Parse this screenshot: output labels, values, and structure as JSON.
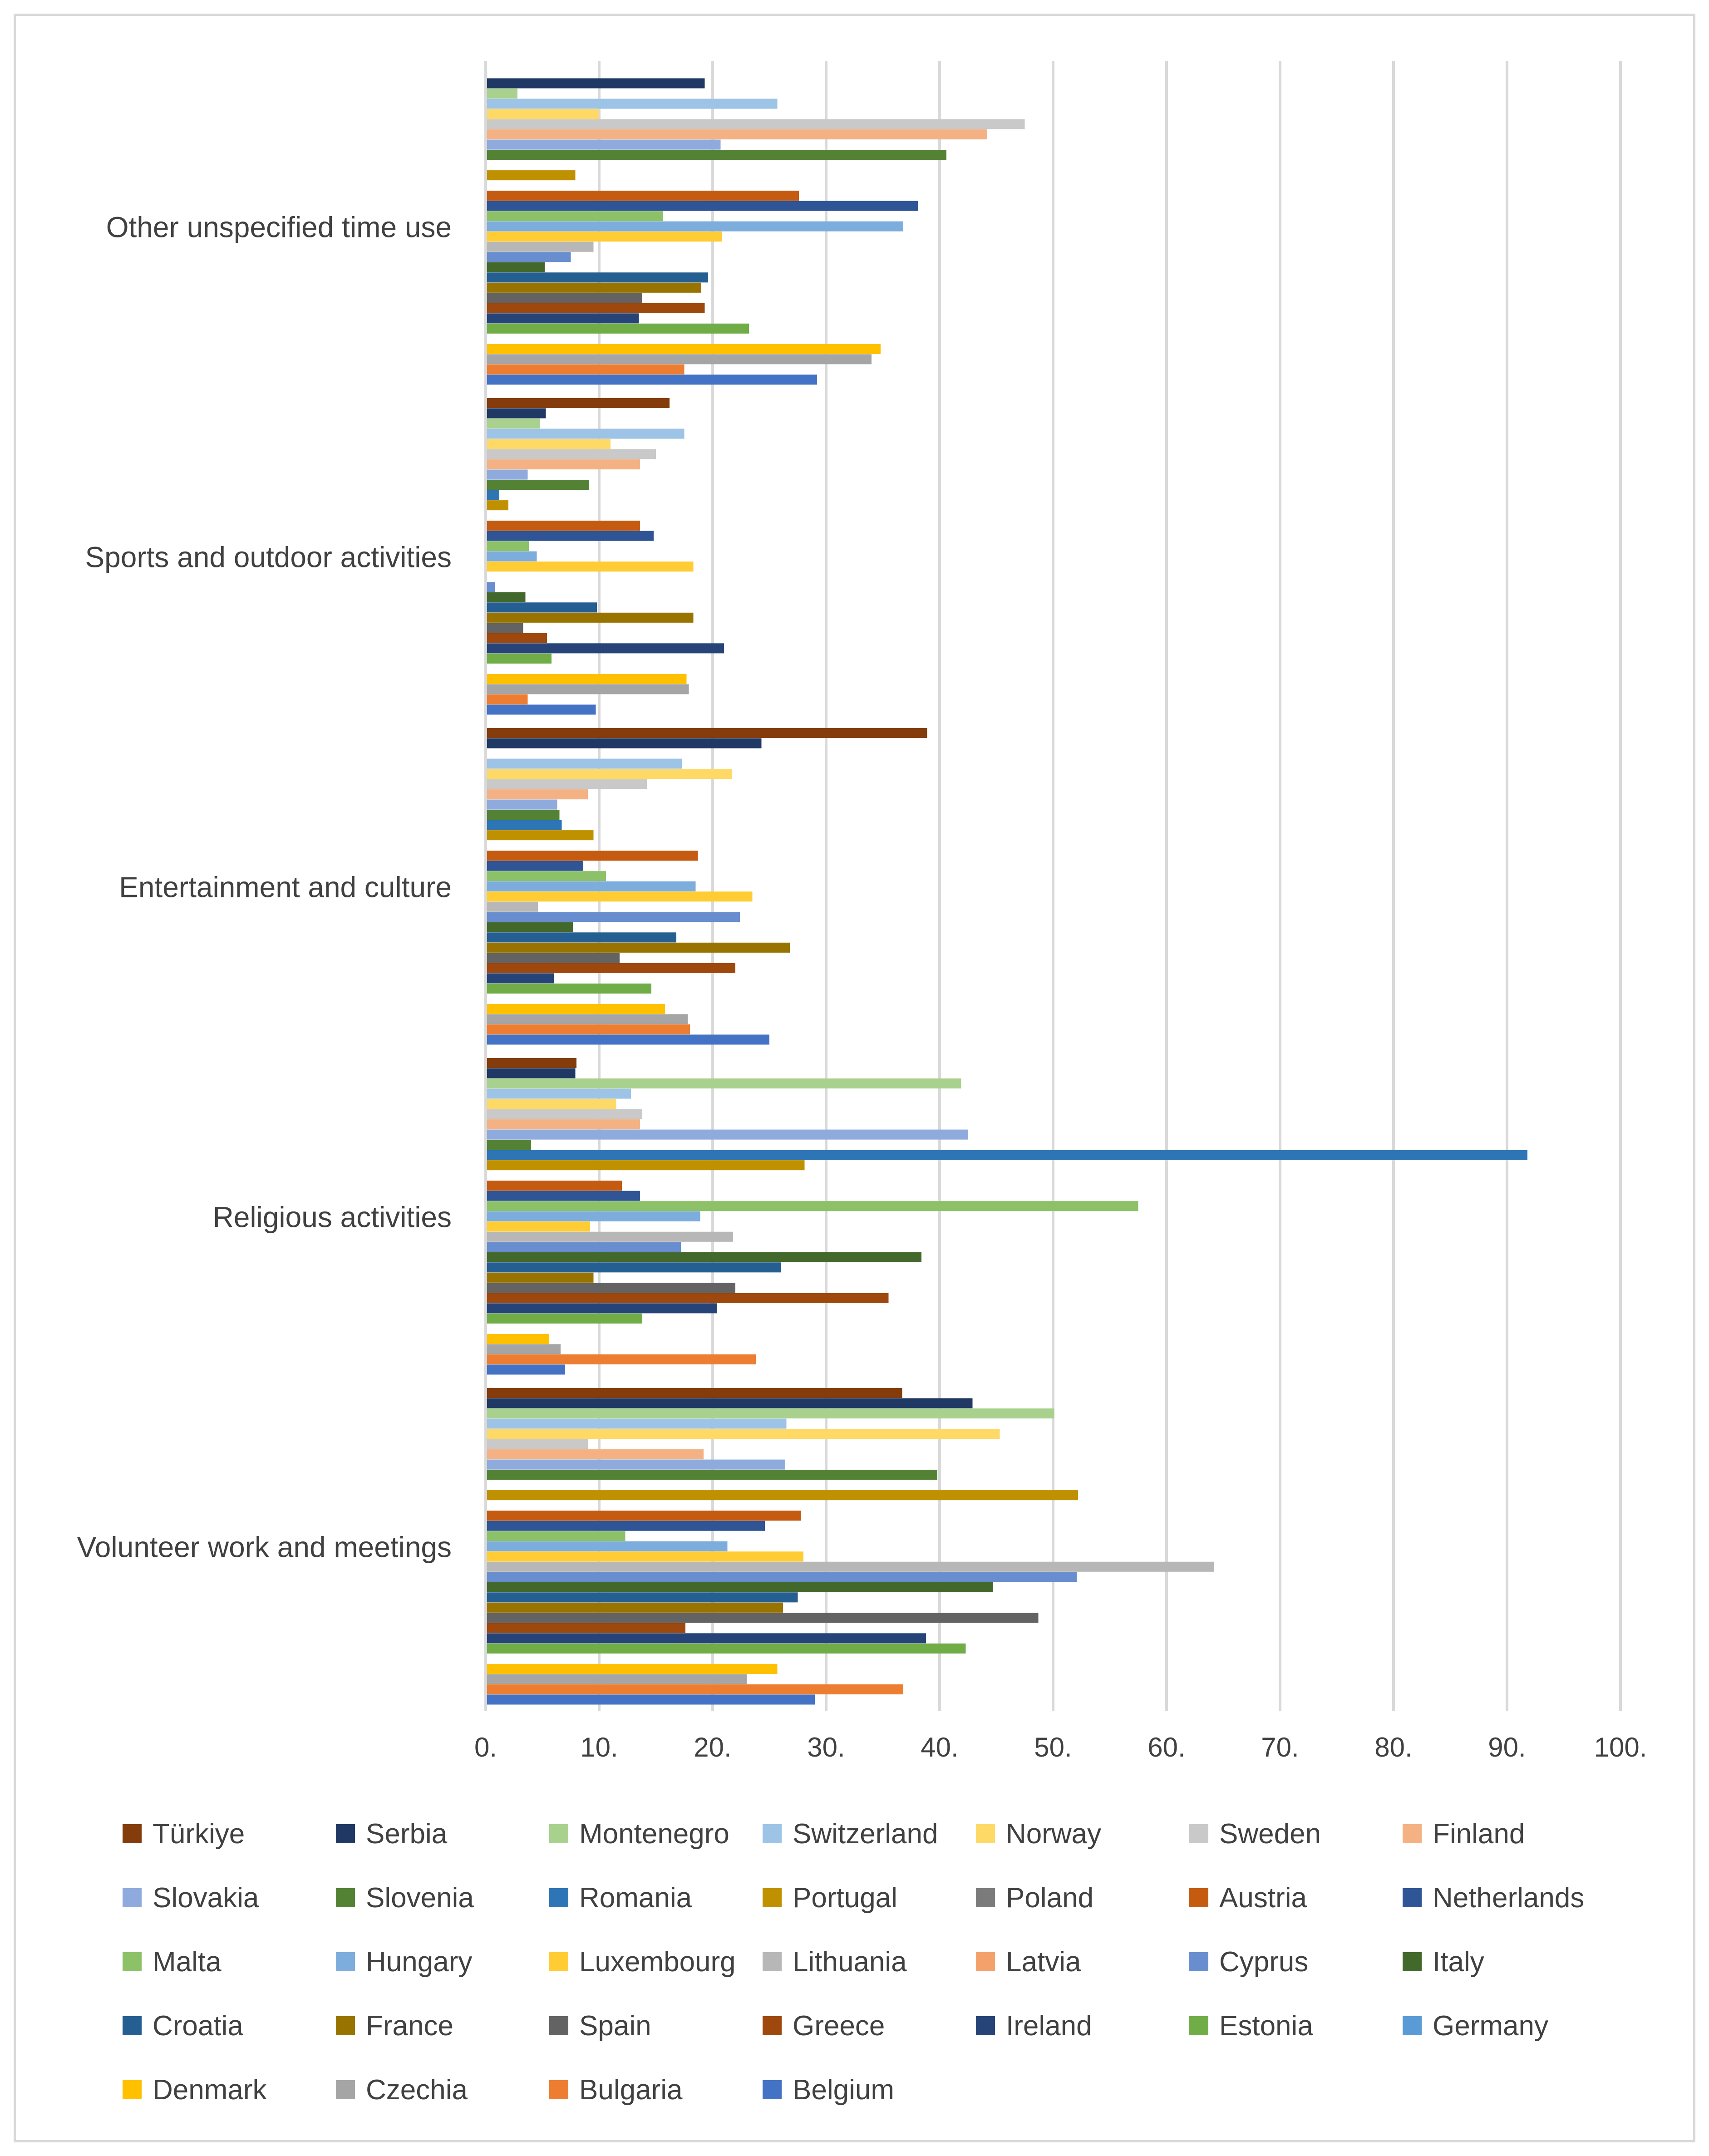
{
  "chart_data": {
    "type": "bar",
    "orientation": "horizontal",
    "grid": true,
    "legend_position": "bottom",
    "xlim": [
      0,
      100
    ],
    "xticks": [
      "0.",
      "10.",
      "20.",
      "30.",
      "40.",
      "50.",
      "60.",
      "70.",
      "80.",
      "90.",
      "100."
    ],
    "categories": [
      "Volunteer work and meetings",
      "Religious activities",
      "Entertainment and culture",
      "Sports and outdoor activities",
      "Other unspecified time use"
    ],
    "series": [
      {
        "name": "Belgium",
        "color": "#4472c4",
        "values": [
          29.0,
          7.0,
          25.0,
          9.7,
          29.2
        ]
      },
      {
        "name": "Bulgaria",
        "color": "#ed7d31",
        "values": [
          36.8,
          23.8,
          18.0,
          3.7,
          17.5
        ]
      },
      {
        "name": "Czechia",
        "color": "#a5a5a5",
        "values": [
          23.0,
          6.6,
          17.8,
          17.9,
          34.0
        ]
      },
      {
        "name": "Denmark",
        "color": "#ffc000",
        "values": [
          25.7,
          5.6,
          15.8,
          17.7,
          34.8
        ]
      },
      {
        "name": "Germany",
        "color": "#5b9bd5",
        "values": [
          null,
          null,
          null,
          null,
          null
        ]
      },
      {
        "name": "Estonia",
        "color": "#70ad47",
        "values": [
          42.3,
          13.8,
          14.6,
          5.8,
          23.2
        ]
      },
      {
        "name": "Ireland",
        "color": "#264478",
        "values": [
          38.8,
          20.4,
          6.0,
          21.0,
          13.5
        ]
      },
      {
        "name": "Greece",
        "color": "#9e480e",
        "values": [
          17.6,
          35.5,
          22.0,
          5.4,
          19.3
        ]
      },
      {
        "name": "Spain",
        "color": "#636363",
        "values": [
          48.7,
          22.0,
          11.8,
          3.3,
          13.8
        ]
      },
      {
        "name": "France",
        "color": "#997300",
        "values": [
          26.2,
          9.5,
          26.8,
          18.3,
          19.0
        ]
      },
      {
        "name": "Croatia",
        "color": "#255e91",
        "values": [
          27.5,
          26.0,
          16.8,
          9.8,
          19.6
        ]
      },
      {
        "name": "Italy",
        "color": "#43682b",
        "values": [
          44.7,
          38.4,
          7.7,
          3.5,
          5.2
        ]
      },
      {
        "name": "Cyprus",
        "color": "#698ed0",
        "values": [
          52.1,
          17.2,
          22.4,
          0.8,
          7.5
        ]
      },
      {
        "name": "Lithuania",
        "color": "#b7b7b7",
        "values": [
          64.2,
          21.8,
          4.6,
          null,
          9.5
        ]
      },
      {
        "name": "Luxembourg",
        "color": "#ffcd33",
        "values": [
          28.0,
          9.2,
          23.5,
          18.3,
          20.8
        ]
      },
      {
        "name": "Hungary",
        "color": "#7caddd",
        "values": [
          21.3,
          18.9,
          18.5,
          4.5,
          36.8
        ]
      },
      {
        "name": "Malta",
        "color": "#8cc168",
        "values": [
          12.3,
          57.5,
          10.6,
          3.8,
          15.6
        ]
      },
      {
        "name": "Netherlands",
        "color": "#2f5597",
        "values": [
          24.6,
          13.6,
          8.6,
          14.8,
          38.1
        ]
      },
      {
        "name": "Austria",
        "color": "#c55a11",
        "values": [
          27.8,
          12.0,
          18.7,
          13.6,
          27.6
        ]
      },
      {
        "name": "Poland",
        "color": "#7b7b7b",
        "values": [
          null,
          null,
          null,
          null,
          null
        ]
      },
      {
        "name": "Portugal",
        "color": "#bf9000",
        "values": [
          52.2,
          28.1,
          9.5,
          2.0,
          7.9
        ]
      },
      {
        "name": "Romania",
        "color": "#2e75b6",
        "values": [
          null,
          91.8,
          6.7,
          1.2,
          null
        ]
      },
      {
        "name": "Slovenia",
        "color": "#548235",
        "values": [
          39.8,
          4.0,
          6.5,
          9.1,
          40.6
        ]
      },
      {
        "name": "Slovakia",
        "color": "#8faadc",
        "values": [
          26.4,
          42.5,
          6.3,
          3.7,
          20.7
        ]
      },
      {
        "name": "Finland",
        "color": "#f4b183",
        "values": [
          19.2,
          13.6,
          9.0,
          13.6,
          44.2
        ]
      },
      {
        "name": "Sweden",
        "color": "#c9c9c9",
        "values": [
          9.0,
          13.8,
          14.2,
          15.0,
          47.5
        ]
      },
      {
        "name": "Norway",
        "color": "#ffd966",
        "values": [
          45.3,
          11.5,
          21.7,
          11.0,
          10.0
        ]
      },
      {
        "name": "Switzerland",
        "color": "#9dc3e6",
        "values": [
          26.5,
          12.8,
          17.3,
          17.5,
          25.7
        ]
      },
      {
        "name": "Montenegro",
        "color": "#a9d18e",
        "values": [
          50.1,
          41.9,
          null,
          4.8,
          2.8
        ]
      },
      {
        "name": "Serbia",
        "color": "#203864",
        "values": [
          42.9,
          7.9,
          24.3,
          5.3,
          19.3
        ]
      },
      {
        "name": "Türkiye",
        "color": "#843c0c",
        "values": [
          36.7,
          8.0,
          38.9,
          16.2,
          null
        ]
      }
    ],
    "legend_order": [
      "Türkiye",
      "Serbia",
      "Montenegro",
      "Switzerland",
      "Norway",
      "Sweden",
      "Finland",
      "Slovakia",
      "Slovenia",
      "Romania",
      "Portugal",
      "Poland",
      "Austria",
      "Netherlands",
      "Malta",
      "Hungary",
      "Luxembourg",
      "Lithuania",
      "Latvia",
      "Cyprus",
      "Italy",
      "Croatia",
      "France",
      "Spain",
      "Greece",
      "Ireland",
      "Estonia",
      "Germany",
      "Denmark",
      "Czechia",
      "Bulgaria",
      "Belgium"
    ],
    "legend_colors": {
      "Latvia": "#f4a26b"
    }
  }
}
